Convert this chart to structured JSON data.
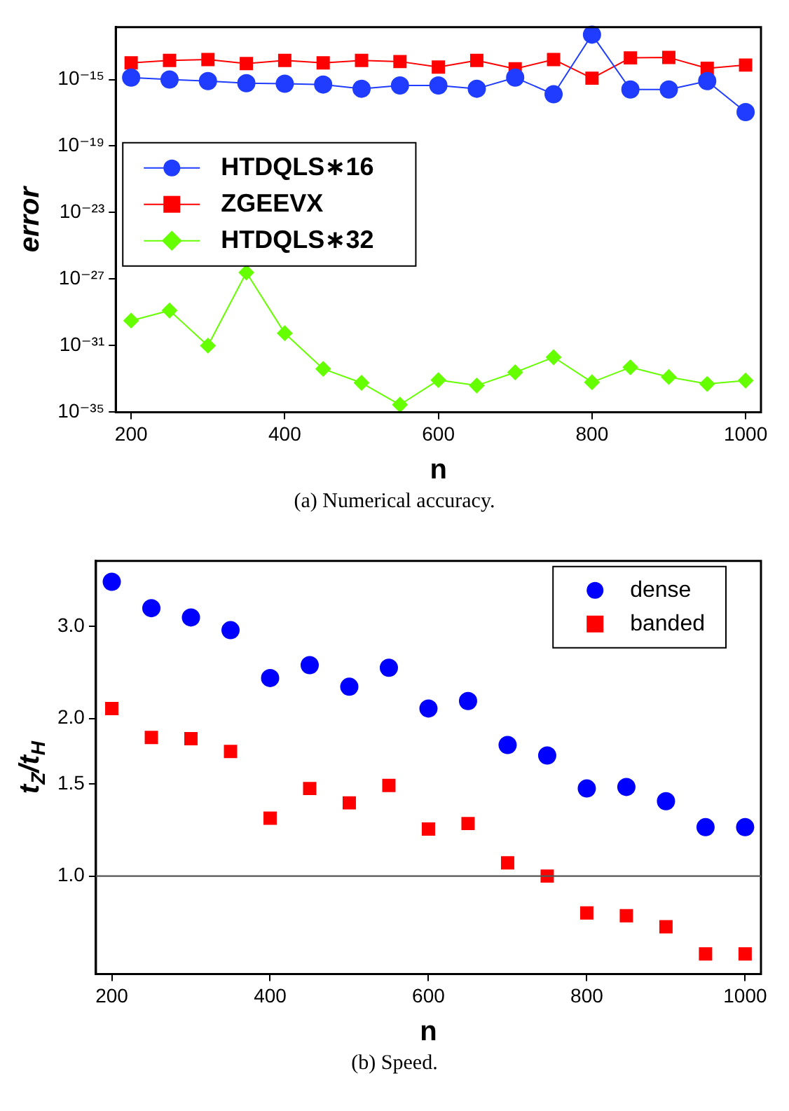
{
  "chart_data": [
    {
      "type": "line",
      "xlabel": "n",
      "ylabel": "error",
      "log": "y",
      "legend": "top left",
      "line_style": "solid",
      "x": [
        200,
        250,
        300,
        350,
        400,
        450,
        500,
        550,
        600,
        650,
        700,
        750,
        800,
        850,
        900,
        950,
        1000
      ],
      "xlim": [
        180,
        1020
      ],
      "xticks": [
        200,
        400,
        600,
        800,
        1000
      ],
      "ylim": [
        1e-35,
        1.4e-12
      ],
      "yticks": [
        {
          "value": 1e-35,
          "label": "10⁻³⁵"
        },
        {
          "value": 1e-31,
          "label": "10⁻³¹"
        },
        {
          "value": 1e-27,
          "label": "10⁻²⁷"
        },
        {
          "value": 1e-23,
          "label": "10⁻²³"
        },
        {
          "value": 1e-19,
          "label": "10⁻¹⁹"
        },
        {
          "value": 1e-15,
          "label": "10⁻¹⁵"
        }
      ],
      "series": [
        {
          "name": "HTDQLS∗16",
          "color": "#1f3cff",
          "marker": "circle",
          "values": [
            1.3e-15,
            1e-15,
            8e-16,
            6e-16,
            5.6e-16,
            5e-16,
            2.8e-16,
            4.4e-16,
            4.4e-16,
            2.8e-16,
            1.3e-15,
            1.3e-16,
            5e-13,
            2.5e-16,
            2.5e-16,
            8e-16,
            1.1e-17
          ]
        },
        {
          "name": "ZGEEVX",
          "color": "#ff0000",
          "marker": "square",
          "values": [
            1e-14,
            1.4e-14,
            1.6e-14,
            9e-15,
            1.4e-14,
            1e-14,
            1.4e-14,
            1.2e-14,
            5.6e-15,
            1.4e-14,
            4.4e-15,
            1.6e-14,
            1.2e-15,
            2e-14,
            2.1e-14,
            4.7e-15,
            7.4e-15
          ]
        },
        {
          "name": "HTDQLS∗32",
          "color": "#66ff00",
          "marker": "diamond",
          "values": [
            3.2e-30,
            1.3e-29,
            1e-31,
            2.5e-27,
            5.6e-31,
            4e-33,
            5.8e-34,
            2.8e-35,
            8.5e-34,
            4e-34,
            2.5e-33,
            2e-32,
            6.3e-34,
            5e-33,
            1.3e-33,
            5e-34,
            8e-34
          ]
        }
      ],
      "annotations": [
        "(a) Numerical accuracy."
      ]
    },
    {
      "type": "scatter",
      "xlabel": "n",
      "ylabel": "t$_{Z}$/t$_{H}$",
      "log": "y",
      "legend": "top right",
      "x": [
        200,
        250,
        300,
        350,
        400,
        450,
        500,
        550,
        600,
        650,
        700,
        750,
        800,
        850,
        900,
        950,
        1000
      ],
      "xlim": [
        180,
        1020
      ],
      "xticks": [
        200,
        400,
        600,
        800,
        1000
      ],
      "ylim": [
        0.65,
        4.0
      ],
      "yticks": [
        {
          "value": 1,
          "label": "1.0"
        },
        {
          "value": 1.5,
          "label": "1.5"
        },
        {
          "value": 2,
          "label": "2.0"
        },
        {
          "value": 3,
          "label": "3.0"
        }
      ],
      "series": [
        {
          "name": "dense",
          "color": "#0000ff",
          "marker": "circle",
          "values": [
            3.65,
            3.25,
            3.12,
            2.95,
            2.39,
            2.53,
            2.3,
            2.5,
            2.09,
            2.16,
            1.78,
            1.7,
            1.47,
            1.48,
            1.39,
            1.24,
            1.24
          ]
        },
        {
          "name": "banded",
          "color": "#ff0000",
          "marker": "square",
          "values": [
            2.09,
            1.84,
            1.83,
            1.73,
            1.29,
            1.47,
            1.38,
            1.49,
            1.23,
            1.26,
            1.06,
            1.0,
            0.85,
            0.84,
            0.8,
            0.71,
            0.71
          ]
        }
      ],
      "ref_lines": [
        {
          "axis": "y",
          "value": 1,
          "color": "#555555"
        }
      ],
      "annotations": [
        "(b) Speed."
      ]
    }
  ]
}
